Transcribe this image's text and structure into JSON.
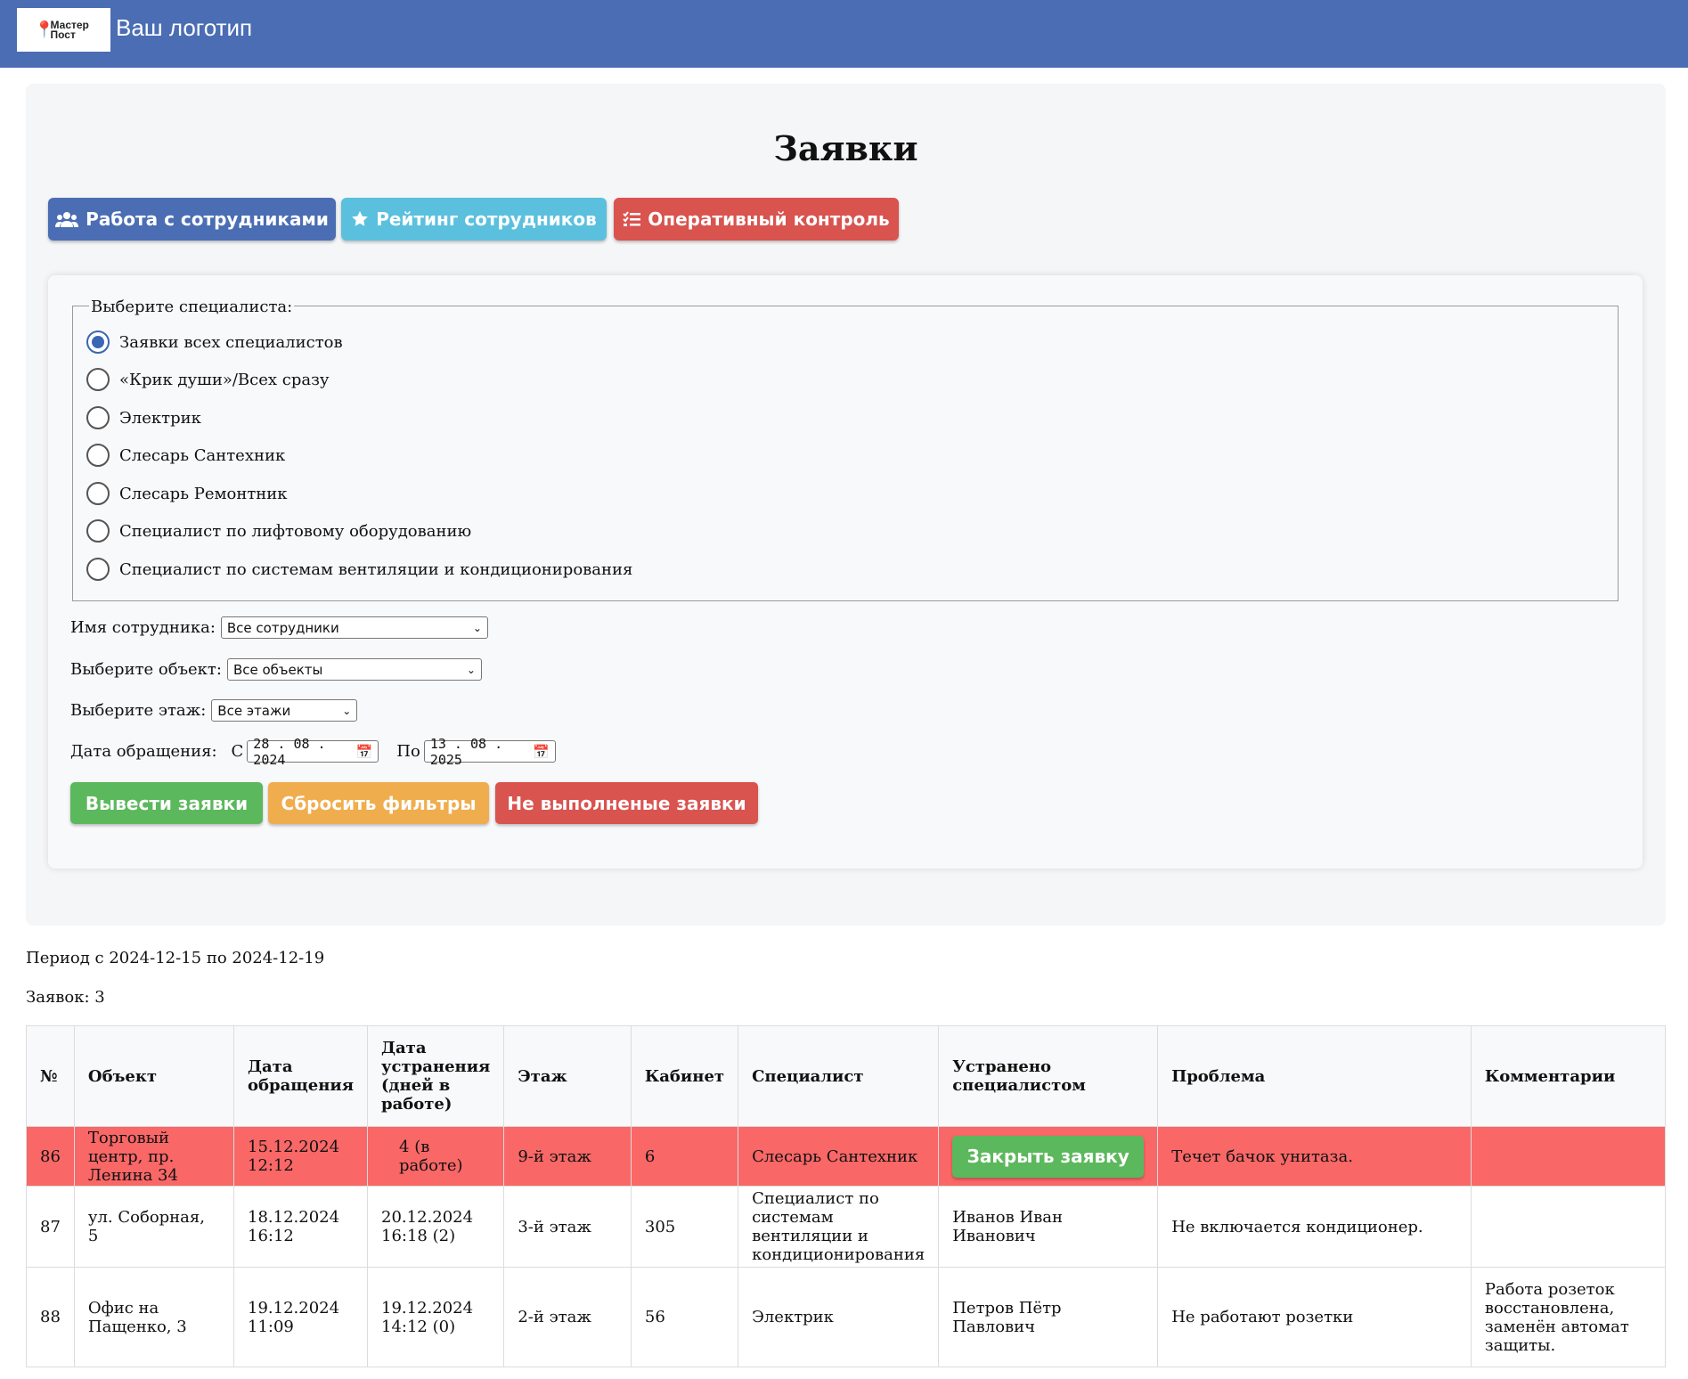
{
  "header": {
    "logo_text": "Мастер Пост",
    "brand": "Ваш логотип"
  },
  "page": {
    "title": "Заявки"
  },
  "nav": {
    "staff": "Работа с сотрудниками",
    "rating": "Рейтинг сотрудников",
    "control": "Оперативный контроль"
  },
  "filters": {
    "legend": "Выберите специалиста:",
    "specialists": [
      {
        "label": "Заявки всех специалистов",
        "checked": true
      },
      {
        "label": "«Крик души»/Всех сразу",
        "checked": false
      },
      {
        "label": "Электрик",
        "checked": false
      },
      {
        "label": "Слесарь Сантехник",
        "checked": false
      },
      {
        "label": "Слесарь Ремонтник",
        "checked": false
      },
      {
        "label": "Специалист по лифтовому оборудованию",
        "checked": false
      },
      {
        "label": "Специалист по системам вентиляции и кондиционирования",
        "checked": false
      }
    ],
    "employee_label": "Имя сотрудника:",
    "employee_value": "Все сотрудники",
    "object_label": "Выберите объект:",
    "object_value": "Все объекты",
    "floor_label": "Выберите этаж:",
    "floor_value": "Все этажи",
    "date_label": "Дата обращения:",
    "from_label": "С",
    "from_value": "28 . 08 . 2024",
    "to_label": "По",
    "to_value": "13 . 08 . 2025"
  },
  "actions": {
    "show": "Вывести заявки",
    "reset": "Сбросить фильтры",
    "pending": "Не выполненые заявки"
  },
  "summary": {
    "period": "Период с 2024-12-15 по 2024-12-19",
    "count": "Заявок: 3"
  },
  "table": {
    "headers": [
      "№",
      "Объект",
      "Дата обращения",
      "Дата устранения (дней в работе)",
      "Этаж",
      "Кабинет",
      "Специалист",
      "Устранено специалистом",
      "Проблема",
      "Комментарии"
    ],
    "rows": [
      {
        "num": "86",
        "object": "Торговый центр, пр. Ленина 34",
        "opened": "15.12.2024 12:12",
        "closed": "4 (в работе)",
        "floor": "9-й этаж",
        "room": "6",
        "specialist": "Слесарь Сантехник",
        "fixed_by": "",
        "close_label": "Закрыть заявку",
        "problem": "Течет бачок унитаза.",
        "comment": ""
      },
      {
        "num": "87",
        "object": "ул. Соборная, 5",
        "opened": "18.12.2024 16:12",
        "closed": "20.12.2024 16:18 (2)",
        "floor": "3-й этаж",
        "room": "305",
        "specialist": "Специалист по системам вентиляции и кондиционирования",
        "fixed_by": "Иванов Иван Иванович",
        "problem": "Не включается кондиционер.",
        "comment": ""
      },
      {
        "num": "88",
        "object": "Офис на Пащенко, 3",
        "opened": "19.12.2024 11:09",
        "closed": "19.12.2024 14:12 (0)",
        "floor": "2-й этаж",
        "room": "56",
        "specialist": "Электрик",
        "fixed_by": "Петров Пётр Павлович",
        "problem": "Не работают розетки",
        "comment": "Работа розеток восстановлена, заменён автомат защиты."
      }
    ]
  },
  "colors": {
    "header": "#4a6db4",
    "primary": "#4a6db4",
    "info": "#5bc0de",
    "danger": "#d9534f",
    "success": "#5cb85c",
    "warning": "#f0ad4e",
    "open_row": "#f96767"
  },
  "icons": {
    "pin": "location-pin-icon",
    "users": "users-icon",
    "star": "star-icon",
    "list": "list-check-icon",
    "calendar": "calendar-icon",
    "chevron": "chevron-down-icon"
  }
}
